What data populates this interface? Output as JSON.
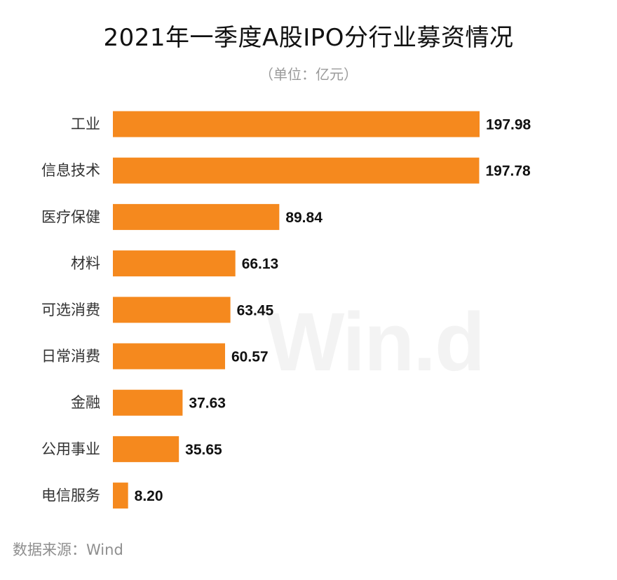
{
  "chart_data": {
    "type": "bar",
    "orientation": "horizontal",
    "title": "2021年一季度A股IPO分行业募资情况",
    "subtitle": "（单位：亿元）",
    "categories": [
      "工业",
      "信息技术",
      "医疗保健",
      "材料",
      "可选消费",
      "日常消费",
      "金融",
      "公用事业",
      "电信服务"
    ],
    "values": [
      197.98,
      197.78,
      89.84,
      66.13,
      63.45,
      60.57,
      37.63,
      35.65,
      8.2
    ],
    "value_labels": [
      "197.98",
      "197.78",
      "89.84",
      "66.13",
      "63.45",
      "60.57",
      "37.63",
      "35.65",
      "8.20"
    ],
    "bar_color": "#f5891e",
    "grid": false,
    "legend": "none"
  },
  "watermark": "Win.d",
  "source": "数据来源：Wind"
}
